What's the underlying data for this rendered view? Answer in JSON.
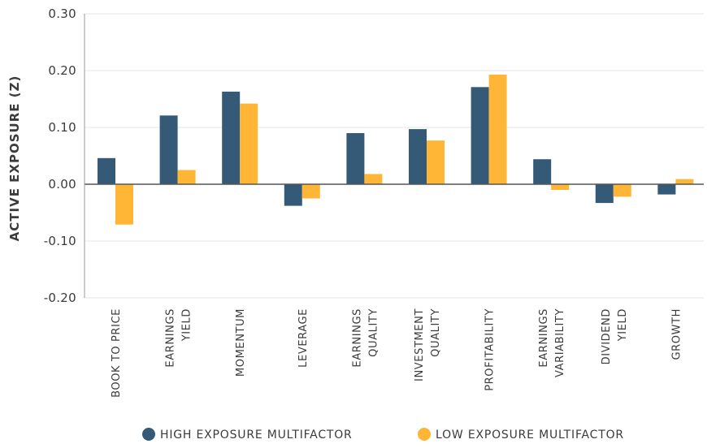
{
  "chart_data": {
    "type": "bar",
    "title": "",
    "xlabel": "",
    "ylabel": "ACTIVE EXPOSURE (Z)",
    "ylim": [
      -0.2,
      0.3
    ],
    "yticks": [
      "0.30",
      "0.20",
      "0.10",
      "0.00",
      "-0.10",
      "-0.20"
    ],
    "ytick_values": [
      0.3,
      0.2,
      0.1,
      0.0,
      -0.1,
      -0.2
    ],
    "grid": true,
    "legend_position": "bottom",
    "categories": [
      [
        "BOOK TO PRICE"
      ],
      [
        "EARNINGS",
        "YIELD"
      ],
      [
        "MOMENTUM"
      ],
      [
        "LEVERAGE"
      ],
      [
        "EARNINGS",
        "QUALITY"
      ],
      [
        "INVESTMENT",
        "QUALITY"
      ],
      [
        "PROFITABILITY"
      ],
      [
        "EARNINGS",
        "VARIABILITY"
      ],
      [
        "DIVIDEND",
        "YIELD"
      ],
      [
        "GROWTH"
      ]
    ],
    "series": [
      {
        "name": "HIGH EXPOSURE MULTIFACTOR",
        "color": "#355a78",
        "values": [
          0.046,
          0.121,
          0.163,
          -0.038,
          0.09,
          0.097,
          0.171,
          0.044,
          -0.033,
          -0.018
        ]
      },
      {
        "name": "LOW EXPOSURE MULTIFACTOR",
        "color": "#ffb637",
        "values": [
          -0.071,
          0.025,
          0.142,
          -0.025,
          0.018,
          0.077,
          0.193,
          -0.01,
          -0.022,
          0.009
        ]
      }
    ]
  }
}
